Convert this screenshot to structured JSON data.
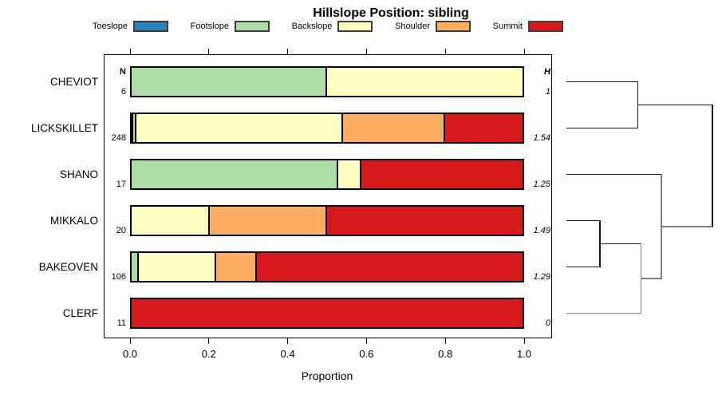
{
  "title": "Hillslope Position: sibling",
  "legend": {
    "items": [
      {
        "label": "Toeslope",
        "color": "#2B83BA"
      },
      {
        "label": "Footslope",
        "color": "#ABDDA4"
      },
      {
        "label": "Backslope",
        "color": "#FFFFBF"
      },
      {
        "label": "Shoulder",
        "color": "#FDAE61"
      },
      {
        "label": "Summit",
        "color": "#D7191C"
      }
    ]
  },
  "column_headers": {
    "n": "N",
    "h": "H"
  },
  "axis": {
    "label": "Proportion",
    "tick_labels": [
      "0.0",
      "0.2",
      "0.4",
      "0.6",
      "0.8",
      "1.0"
    ],
    "tick_values": [
      0,
      0.2,
      0.4,
      0.6,
      0.8,
      1.0
    ]
  },
  "chart_data": {
    "type": "bar",
    "variant": "horizontal-stacked-with-dendrogram",
    "title": "Hillslope Position: sibling",
    "xlabel": "Proportion",
    "xlim": [
      0,
      1
    ],
    "categories": [
      "Toeslope",
      "Footslope",
      "Backslope",
      "Shoulder",
      "Summit"
    ],
    "series_colors": [
      "#2B83BA",
      "#ABDDA4",
      "#FFFFBF",
      "#FDAE61",
      "#D7191C"
    ],
    "rows": [
      {
        "name": "CHEVIOT",
        "n": "6",
        "shannon_h": "1",
        "proportions": [
          0,
          0.5,
          0.5,
          0,
          0
        ]
      },
      {
        "name": "LICKSKILLET",
        "n": "248",
        "shannon_h": "1.54",
        "proportions": [
          0.004,
          0.008,
          0.528,
          0.262,
          0.198
        ]
      },
      {
        "name": "SHANO",
        "n": "17",
        "shannon_h": "1.25",
        "proportions": [
          0,
          0.529,
          0.059,
          0,
          0.412
        ]
      },
      {
        "name": "MIKKALO",
        "n": "20",
        "shannon_h": "1.49",
        "proportions": [
          0,
          0,
          0.2,
          0.3,
          0.5
        ]
      },
      {
        "name": "BAKEOVEN",
        "n": "106",
        "shannon_h": "1.29",
        "proportions": [
          0,
          0.019,
          0.198,
          0.104,
          0.679
        ]
      },
      {
        "name": "CLERF",
        "n": "11",
        "shannon_h": "0",
        "proportions": [
          0,
          0,
          0,
          0,
          1
        ]
      }
    ],
    "dendrogram": {
      "leaf_order": [
        "CHEVIOT",
        "LICKSKILLET",
        "SHANO",
        "MIKKALO",
        "BAKEOVEN",
        "CLERF"
      ],
      "topology": "((CHEVIOT,LICKSKILLET),(SHANO,((MIKKALO,BAKEOVEN),CLERF)))",
      "segments": [
        {
          "type": "h",
          "y": 0,
          "h0": 0,
          "h1": 0.49,
          "color": "#1a1a1a"
        },
        {
          "type": "h",
          "y": 1,
          "h0": 0,
          "h1": 0.49,
          "color": "#1a1a1a"
        },
        {
          "type": "h",
          "y": 2,
          "h0": 0,
          "h1": 0.65,
          "color": "#1a1a1a"
        },
        {
          "type": "h",
          "y": 3,
          "h0": 0,
          "h1": 0.23,
          "color": "#1a1a1a"
        },
        {
          "type": "h",
          "y": 4,
          "h0": 0,
          "h1": 0.23,
          "color": "#1a1a1a"
        },
        {
          "type": "h",
          "y": 5,
          "h0": 0,
          "h1": 0.51,
          "color": "#7d7d7d"
        },
        {
          "type": "v",
          "h": 0.49,
          "y0": 0,
          "y1": 1,
          "color": "#1a1a1a"
        },
        {
          "type": "v",
          "h": 0.23,
          "y0": 3,
          "y1": 4,
          "color": "#1a1a1a"
        },
        {
          "type": "v",
          "h": 0.51,
          "y0": 3.5,
          "y1": 5,
          "color": "#7d7d7d"
        },
        {
          "type": "v",
          "h": 0.65,
          "y0": 2,
          "y1": 4.25,
          "color": "#7d7d7d"
        },
        {
          "type": "v",
          "h": 1.0,
          "y0": 0.5,
          "y1": 3.125,
          "color": "#1a1a1a"
        },
        {
          "type": "h",
          "y": 0.5,
          "h0": 0.49,
          "h1": 1.0,
          "color": "#1a1a1a"
        },
        {
          "type": "h",
          "y": 3.5,
          "h0": 0.23,
          "h1": 0.51,
          "color": "#1a1a1a"
        },
        {
          "type": "h",
          "y": 4.25,
          "h0": 0.51,
          "h1": 0.65,
          "color": "#7d7d7d"
        },
        {
          "type": "h",
          "y": 3.125,
          "h0": 0.65,
          "h1": 1.0,
          "color": "#7d7d7d"
        }
      ]
    }
  }
}
